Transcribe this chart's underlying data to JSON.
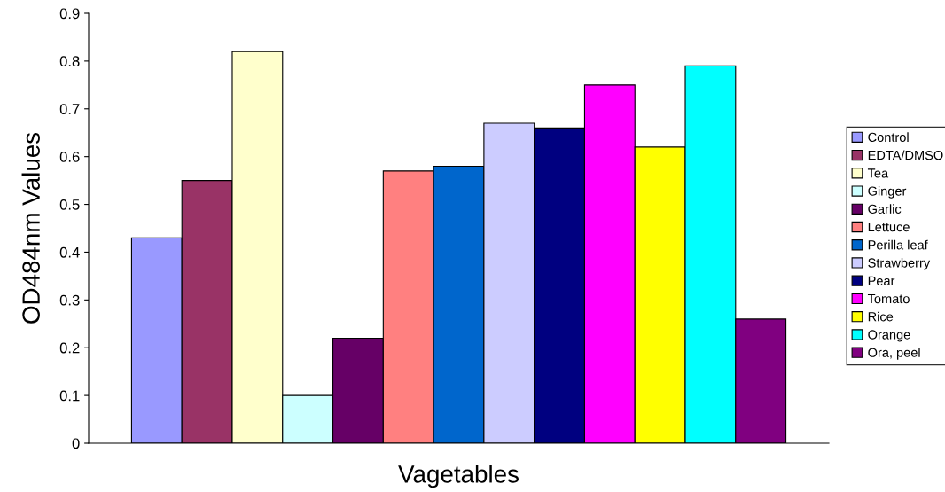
{
  "chart_data": {
    "type": "bar",
    "xlabel": "Vagetables",
    "ylabel": "OD484nm Values",
    "categories": [
      null
    ],
    "series": [
      {
        "name": "Control",
        "color": "#9999ff",
        "values": [
          0.43
        ]
      },
      {
        "name": "EDTA/DMSO",
        "color": "#993366",
        "values": [
          0.55
        ]
      },
      {
        "name": "Tea",
        "color": "#ffffcc",
        "values": [
          0.82
        ]
      },
      {
        "name": "Ginger",
        "color": "#ccffff",
        "values": [
          0.1
        ]
      },
      {
        "name": "Garlic",
        "color": "#660066",
        "values": [
          0.22
        ]
      },
      {
        "name": "Lettuce",
        "color": "#ff8080",
        "values": [
          0.57
        ]
      },
      {
        "name": "Perilla leaf",
        "color": "#0066cc",
        "values": [
          0.58
        ]
      },
      {
        "name": "Strawberry",
        "color": "#ccccff",
        "values": [
          0.67
        ]
      },
      {
        "name": "Pear",
        "color": "#000080",
        "values": [
          0.66
        ]
      },
      {
        "name": "Tomato",
        "color": "#ff00ff",
        "values": [
          0.75
        ]
      },
      {
        "name": "Rice",
        "color": "#ffff00",
        "values": [
          0.62
        ]
      },
      {
        "name": "Orange",
        "color": "#00ffff",
        "values": [
          0.79
        ]
      },
      {
        "name": "Ora, peel",
        "color": "#800080",
        "values": [
          0.26
        ]
      }
    ],
    "ylim": [
      0,
      0.9
    ],
    "yticks": [
      0,
      0.1,
      0.2,
      0.3,
      0.4,
      0.5,
      0.6,
      0.7,
      0.8,
      0.9
    ],
    "grid": false,
    "legend": "right",
    "tick_labels": "y"
  }
}
